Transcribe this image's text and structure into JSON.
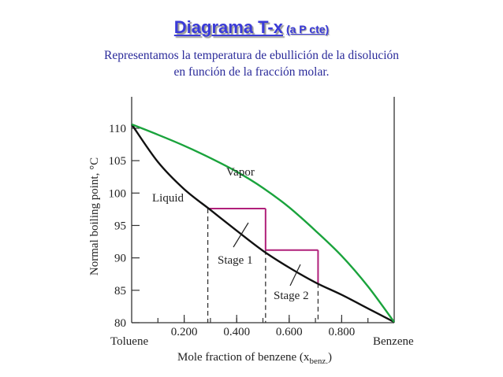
{
  "header": {
    "title": "Diagrama T-x",
    "subtitle": "(a P cte)",
    "caption_line1": "Representamos la temperatura de ebullición de la disolución",
    "caption_line2": "en función de la fracción molar."
  },
  "chart_data": {
    "type": "line",
    "xlabel": "Mole fraction of benzene (x",
    "xlabel_sub": "benz.",
    "xlabel_end": ")",
    "ylabel": "Normal boiling point, °C",
    "xlim": [
      0,
      1
    ],
    "ylim": [
      80,
      110.6
    ],
    "x_ticks": [
      0.2,
      0.4,
      0.6,
      0.8
    ],
    "x_tick_labels": [
      "0.200",
      "0.400",
      "0.600",
      "0.800"
    ],
    "x_end_labels": [
      "Toluene",
      "Benzene"
    ],
    "y_ticks": [
      80,
      85,
      90,
      95,
      100,
      105,
      110
    ],
    "y_tick_labels": [
      "80",
      "85",
      "90",
      "95",
      "100",
      "105",
      "110"
    ],
    "series": [
      {
        "name": "Liquid",
        "color": "#111111",
        "x": [
          0,
          0.1,
          0.2,
          0.3,
          0.4,
          0.5,
          0.6,
          0.7,
          0.8,
          0.9,
          1.0
        ],
        "y": [
          110.6,
          104.8,
          100.6,
          97.4,
          94.2,
          91.1,
          88.5,
          86.2,
          84.3,
          82.2,
          80.1
        ]
      },
      {
        "name": "Vapor",
        "color": "#1aa33c",
        "x": [
          0,
          0.1,
          0.2,
          0.3,
          0.4,
          0.5,
          0.6,
          0.7,
          0.8,
          0.9,
          1.0
        ],
        "y": [
          110.6,
          109.0,
          107.3,
          105.4,
          103.3,
          100.8,
          97.8,
          94.2,
          90.3,
          85.6,
          80.1
        ]
      }
    ],
    "stages": {
      "color": "#b0207a",
      "steps": [
        {
          "x_liquid": 0.29,
          "x_vapor": 0.51,
          "T": 97.6
        },
        {
          "x_liquid": 0.51,
          "x_vapor": 0.71,
          "T": 91.2
        }
      ],
      "dashed_drop_x": [
        0.29,
        0.51,
        0.71
      ]
    },
    "annotations": [
      "Liquid",
      "Vapor",
      "Stage 1",
      "Stage 2"
    ],
    "grid": false,
    "legend": "none"
  }
}
